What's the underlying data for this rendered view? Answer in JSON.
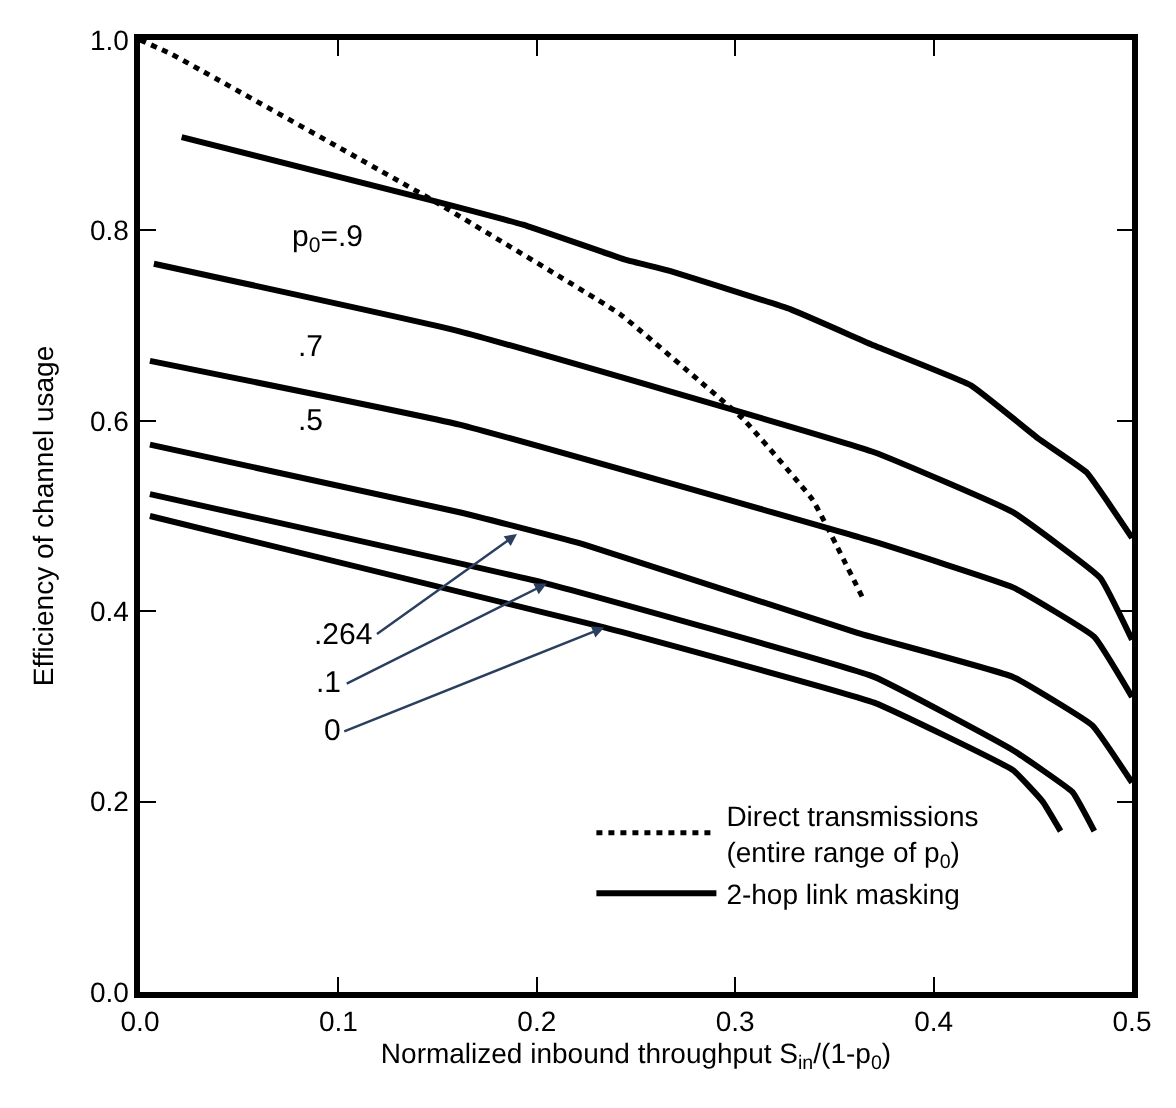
{
  "chart_data": {
    "type": "line",
    "xlabel": "Normalized inbound throughput S$_{in}$/(1-p$_{0}$)",
    "ylabel": "Efficiency of channel usage",
    "xlim": [
      0,
      0.5
    ],
    "ylim": [
      0,
      1.0
    ],
    "xticks": [
      {
        "value": 0,
        "label": "0.0"
      },
      0.1,
      0.2,
      0.3,
      0.4,
      0.5
    ],
    "yticks": [
      {
        "value": 0,
        "label": "0.0"
      },
      0.2,
      0.4,
      0.6,
      0.8,
      {
        "value": 1,
        "label": "1.0"
      }
    ],
    "legend": "bottom right",
    "series": [
      {
        "name": "Direct transmissions\n(entire range of p$_{0}$)",
        "color": "#000000",
        "line_style": "dotted",
        "x": [
          0.0,
          0.016,
          0.148,
          0.242,
          0.283,
          0.304,
          0.339,
          0.364
        ],
        "values": [
          1.0,
          0.985,
          0.831,
          0.712,
          0.64,
          0.602,
          0.517,
          0.415
        ]
      },
      {
        "name": "2-hop link masking",
        "color": "#000000",
        "line_style": "solid",
        "x": [
          0.021,
          0.148,
          0.193,
          0.245,
          0.266,
          0.328,
          0.37,
          0.419,
          0.453,
          0.477,
          0.5
        ],
        "values": [
          0.898,
          0.831,
          0.806,
          0.769,
          0.758,
          0.717,
          0.679,
          0.637,
          0.581,
          0.546,
          0.477
        ]
      },
      {
        "color": "#000000",
        "line_style": "solid",
        "x": [
          0.007,
          0.161,
          0.37,
          0.44,
          0.484,
          0.5
        ],
        "values": [
          0.765,
          0.694,
          0.567,
          0.504,
          0.435,
          0.37
        ]
      },
      {
        "color": "#000000",
        "line_style": "solid",
        "x": [
          0.005,
          0.161,
          0.37,
          0.44,
          0.481,
          0.5
        ],
        "values": [
          0.663,
          0.596,
          0.473,
          0.425,
          0.373,
          0.31
        ]
      },
      {
        "color": "#000000",
        "line_style": "solid",
        "x": [
          0.005,
          0.161,
          0.224,
          0.362,
          0.44,
          0.48,
          0.5
        ],
        "values": [
          0.575,
          0.504,
          0.47,
          0.377,
          0.331,
          0.28,
          0.22
        ]
      },
      {
        "color": "#000000",
        "line_style": "solid",
        "x": [
          0.005,
          0.205,
          0.37,
          0.44,
          0.47,
          0.481
        ],
        "values": [
          0.523,
          0.429,
          0.331,
          0.254,
          0.21,
          0.169
        ]
      },
      {
        "color": "#000000",
        "line_style": "solid",
        "x": [
          0.005,
          0.234,
          0.37,
          0.44,
          0.455,
          0.464
        ],
        "values": [
          0.5,
          0.383,
          0.304,
          0.233,
          0.2,
          0.169
        ]
      }
    ],
    "annotations": [
      "p$_{0}$=.9",
      ".7",
      ".5",
      {
        "text": ".264",
        "x": 0.19,
        "y": 0.481
      },
      {
        "text": ".1",
        "x": 0.205,
        "y": 0.429
      },
      {
        "text": "0",
        "x": 0.234,
        "y": 0.383
      }
    ]
  }
}
